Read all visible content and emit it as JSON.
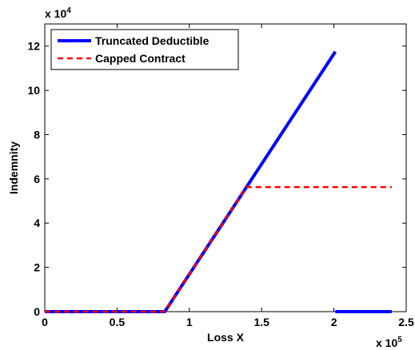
{
  "chart_data": {
    "type": "line",
    "xlabel": "Loss X",
    "ylabel": "Indemnity",
    "x_multiplier": "x 10",
    "x_exponent": "5",
    "y_multiplier": "x 10",
    "y_exponent": "4",
    "xlim": [
      0,
      250000
    ],
    "ylim": [
      0,
      130000
    ],
    "x_ticks": [
      0,
      50000,
      100000,
      150000,
      200000,
      250000
    ],
    "x_tick_labels": [
      "0",
      "0.5",
      "1",
      "1.5",
      "2",
      "2.5"
    ],
    "y_ticks": [
      0,
      20000,
      40000,
      60000,
      80000,
      100000,
      120000
    ],
    "y_tick_labels": [
      "0",
      "2",
      "4",
      "6",
      "8",
      "10",
      "12"
    ],
    "grid": false,
    "legend_position": "top-left",
    "series": [
      {
        "name": "Truncated Deductible",
        "color": "#0000ff",
        "style": "solid",
        "segments": [
          [
            [
              0,
              0
            ],
            [
              83000,
              0
            ],
            [
              201000,
              117500
            ]
          ],
          [
            [
              201000,
              0
            ],
            [
              240000,
              0
            ]
          ]
        ]
      },
      {
        "name": "Capped Contract",
        "color": "#ff0000",
        "style": "dashed",
        "segments": [
          [
            [
              0,
              0
            ],
            [
              83000,
              0
            ],
            [
              139500,
              56300
            ],
            [
              240000,
              56300
            ]
          ]
        ]
      }
    ]
  }
}
